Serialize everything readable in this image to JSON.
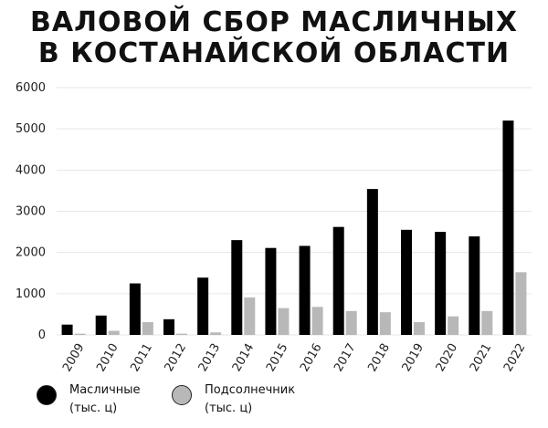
{
  "title": {
    "line1": "ВАЛОВОЙ СБОР МАСЛИЧНЫХ",
    "line2": "В КОСТАНАЙСКОЙ ОБЛАСТИ"
  },
  "chart_data": {
    "type": "bar",
    "title": "ВАЛОВОЙ СБОР МАСЛИЧНЫХ В КОСТАНАЙСКОЙ ОБЛАСТИ",
    "categories": [
      "2009",
      "2010",
      "2011",
      "2012",
      "2013",
      "2014",
      "2015",
      "2016",
      "2017",
      "2018",
      "2019",
      "2020",
      "2021",
      "2022"
    ],
    "series": [
      {
        "name": "Масличные (тыс. ц)",
        "color": "#000000",
        "values": [
          250,
          470,
          1250,
          380,
          1390,
          2300,
          2110,
          2160,
          2620,
          3540,
          2550,
          2500,
          2390,
          5200
        ]
      },
      {
        "name": "Подсолнечник (тыс. ц)",
        "color": "#b8b8b8",
        "values": [
          30,
          100,
          310,
          30,
          60,
          910,
          650,
          680,
          580,
          550,
          310,
          450,
          580,
          1520
        ]
      }
    ],
    "yticks": [
      0,
      1000,
      2000,
      3000,
      4000,
      5000,
      6000
    ],
    "ylim": [
      0,
      6000
    ],
    "grid": true,
    "legend": "bottom"
  },
  "legend": {
    "items": [
      {
        "line1": "Масличные",
        "line2": "(тыс. ц)",
        "color": "#000000"
      },
      {
        "line1": "Подсолнечник",
        "line2": "(тыс. ц)",
        "color": "#b8b8b8"
      }
    ]
  }
}
